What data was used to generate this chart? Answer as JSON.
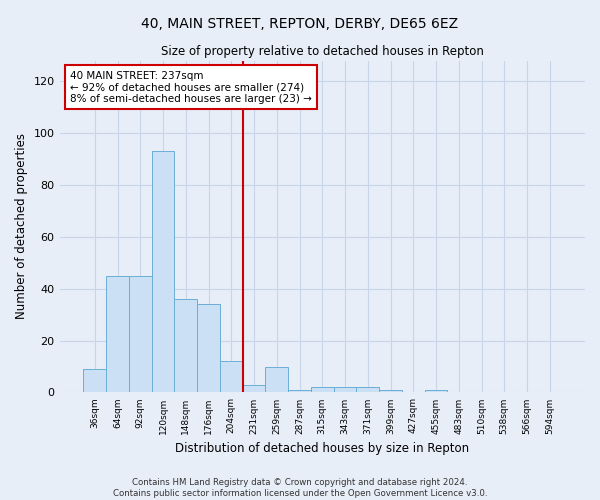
{
  "title": "40, MAIN STREET, REPTON, DERBY, DE65 6EZ",
  "subtitle": "Size of property relative to detached houses in Repton",
  "xlabel": "Distribution of detached houses by size in Repton",
  "ylabel": "Number of detached properties",
  "bar_color": "#cce0f5",
  "bar_edge_color": "#6aaed6",
  "grid_color": "#c8d4e8",
  "background_color": "#e8eef8",
  "categories": [
    "36sqm",
    "64sqm",
    "92sqm",
    "120sqm",
    "148sqm",
    "176sqm",
    "204sqm",
    "231sqm",
    "259sqm",
    "287sqm",
    "315sqm",
    "343sqm",
    "371sqm",
    "399sqm",
    "427sqm",
    "455sqm",
    "483sqm",
    "510sqm",
    "538sqm",
    "566sqm",
    "594sqm"
  ],
  "values": [
    9,
    45,
    45,
    93,
    36,
    34,
    12,
    3,
    10,
    1,
    2,
    2,
    2,
    1,
    0,
    1,
    0,
    0,
    0,
    0,
    0
  ],
  "ylim": [
    0,
    128
  ],
  "yticks": [
    0,
    20,
    40,
    60,
    80,
    100,
    120
  ],
  "vline_x_index": 7,
  "vline_color": "#cc0000",
  "annotation_line1": "40 MAIN STREET: 237sqm",
  "annotation_line2": "← 92% of detached houses are smaller (274)",
  "annotation_line3": "8% of semi-detached houses are larger (23) →",
  "annotation_box_color": "#ffffff",
  "annotation_box_edge": "#cc0000",
  "footnote": "Contains HM Land Registry data © Crown copyright and database right 2024.\nContains public sector information licensed under the Open Government Licence v3.0."
}
